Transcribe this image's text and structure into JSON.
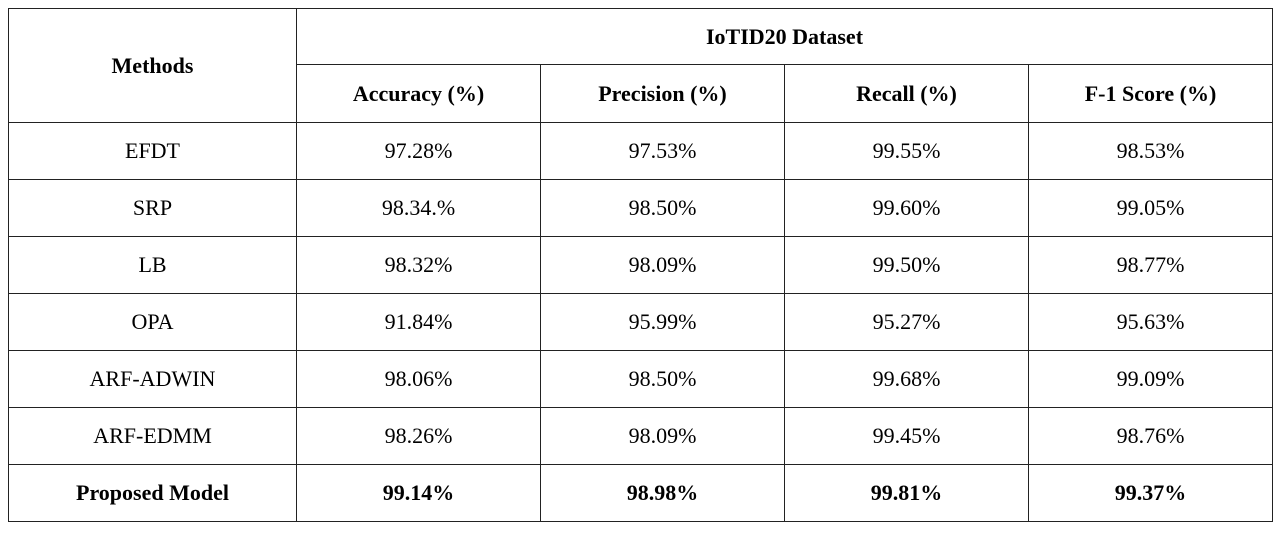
{
  "table": {
    "header": {
      "methods": "Methods",
      "group": "IoTID20 Dataset",
      "columns": [
        "Accuracy (%)",
        "Precision (%)",
        "Recall (%)",
        "F-1 Score (%)"
      ]
    },
    "rows": [
      [
        "EFDT",
        "97.28%",
        "97.53%",
        "99.55%",
        "98.53%"
      ],
      [
        "SRP",
        "98.34.%",
        "98.50%",
        "99.60%",
        "99.05%"
      ],
      [
        "LB",
        "98.32%",
        "98.09%",
        "99.50%",
        "98.77%"
      ],
      [
        "OPA",
        "91.84%",
        "95.99%",
        "95.27%",
        "95.63%"
      ],
      [
        "ARF-ADWIN",
        "98.06%",
        "98.50%",
        "99.68%",
        "99.09%"
      ],
      [
        "ARF-EDMM",
        "98.26%",
        "98.09%",
        "99.45%",
        "98.76%"
      ],
      [
        "Proposed Model",
        "99.14%",
        "98.98%",
        "99.81%",
        "99.37%"
      ]
    ]
  }
}
